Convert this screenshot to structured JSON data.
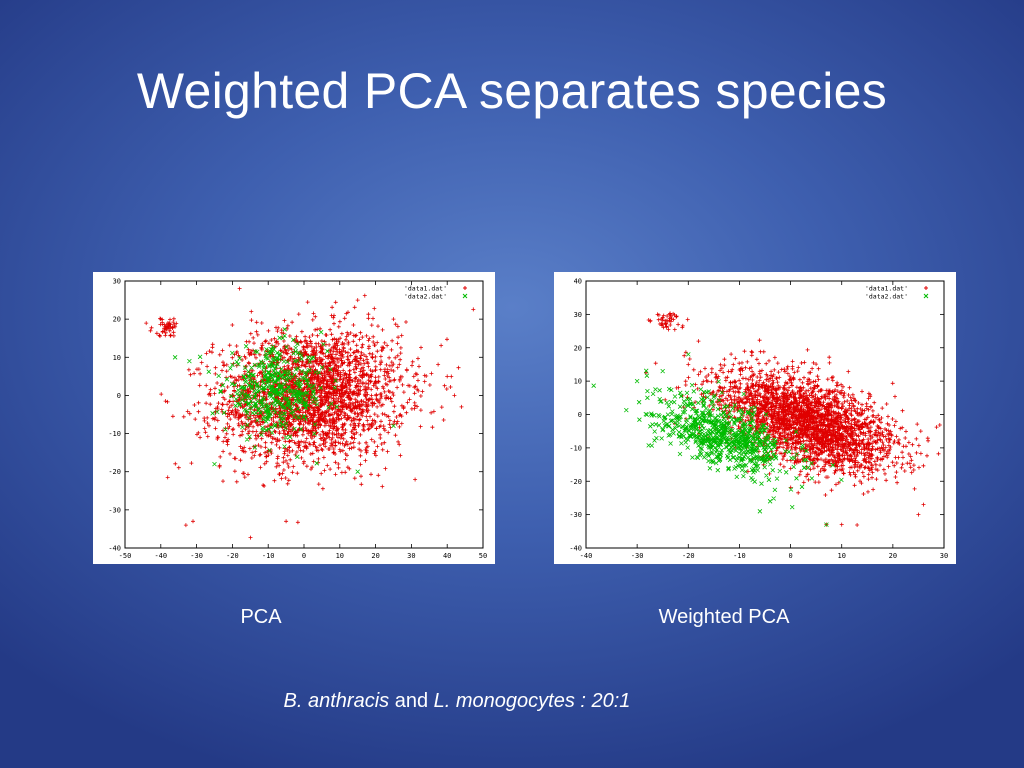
{
  "slide": {
    "title": "Weighted PCA separates species",
    "caption_left": "PCA",
    "caption_right": "Weighted PCA",
    "footnote": {
      "species1": "B. anthracis",
      "connector": " and ",
      "species2": "L. monogocytes : 20:1"
    }
  },
  "chart_data": [
    {
      "type": "scatter",
      "title": "",
      "xlabel": "",
      "ylabel": "",
      "xlim": [
        -50,
        50
      ],
      "ylim": [
        -40,
        30
      ],
      "xticks": [
        -50,
        -40,
        -30,
        -20,
        -10,
        0,
        10,
        20,
        30,
        40,
        50
      ],
      "yticks": [
        -40,
        -30,
        -20,
        -10,
        0,
        10,
        20,
        30
      ],
      "grid": false,
      "legend_position": "top-right",
      "series": [
        {
          "name": "'data1.dat'",
          "marker": "+",
          "color": "#e00000",
          "point_count": 2600,
          "cluster": {
            "center": [
              2,
              0
            ],
            "std": [
              13,
              8.5
            ],
            "rotation_deg": 5
          },
          "extra_clusters": [
            {
              "center": [
                -38,
                18
              ],
              "std": [
                2.2,
                1.2
              ],
              "count": 45
            }
          ],
          "sample_points": [
            [
              -38,
              19
            ],
            [
              -40,
              20
            ],
            [
              -36,
              18
            ],
            [
              -33,
              -34
            ],
            [
              -31,
              -33
            ],
            [
              40,
              5
            ],
            [
              42,
              0
            ],
            [
              -5,
              -33
            ],
            [
              15,
              25
            ],
            [
              -18,
              28
            ],
            [
              44,
              -3
            ],
            [
              25,
              20
            ]
          ]
        },
        {
          "name": "'data2.dat'",
          "marker": "x",
          "color": "#00bb00",
          "point_count": 420,
          "cluster": {
            "center": [
              -8,
              1
            ],
            "std": [
              7,
              5.5
            ],
            "rotation_deg": 0
          },
          "sample_points": [
            [
              -36,
              10
            ],
            [
              -32,
              9
            ],
            [
              -25,
              -18
            ],
            [
              15,
              -20
            ],
            [
              25,
              -8
            ],
            [
              -20,
              8
            ]
          ]
        }
      ]
    },
    {
      "type": "scatter",
      "title": "",
      "xlabel": "",
      "ylabel": "",
      "xlim": [
        -40,
        30
      ],
      "ylim": [
        -40,
        40
      ],
      "xticks": [
        -40,
        -30,
        -20,
        -10,
        0,
        10,
        20,
        30
      ],
      "yticks": [
        -40,
        -30,
        -20,
        -10,
        0,
        10,
        20,
        30,
        40
      ],
      "grid": false,
      "legend_position": "top-right",
      "series": [
        {
          "name": "'data1.dat'",
          "marker": "+",
          "color": "#e00000",
          "point_count": 2600,
          "cluster": {
            "center": [
              3,
              -2
            ],
            "std": [
              10,
              5.5
            ],
            "rotation_deg": -38
          },
          "extra_clusters": [
            {
              "center": [
                -24,
                28
              ],
              "std": [
                1.8,
                1.3
              ],
              "count": 40
            }
          ],
          "sample_points": [
            [
              -26,
              30
            ],
            [
              -25,
              29
            ],
            [
              -22,
              27
            ],
            [
              -24,
              28
            ],
            [
              26,
              -27
            ],
            [
              25,
              -30
            ],
            [
              10,
              -33
            ],
            [
              7,
              -33
            ],
            [
              -20,
              15
            ],
            [
              -18,
              22
            ]
          ]
        },
        {
          "name": "'data2.dat'",
          "marker": "x",
          "color": "#00bb00",
          "point_count": 700,
          "cluster": {
            "center": [
              -13,
              -6
            ],
            "std": [
              8,
              4.2
            ],
            "rotation_deg": -40
          },
          "sample_points": [
            [
              -30,
              10
            ],
            [
              -28,
              7
            ],
            [
              -27,
              -3
            ],
            [
              -28,
              5
            ],
            [
              -6,
              -29
            ],
            [
              7,
              -33
            ],
            [
              -4,
              -26
            ],
            [
              -20,
              18
            ],
            [
              -25,
              13
            ]
          ]
        }
      ]
    }
  ]
}
